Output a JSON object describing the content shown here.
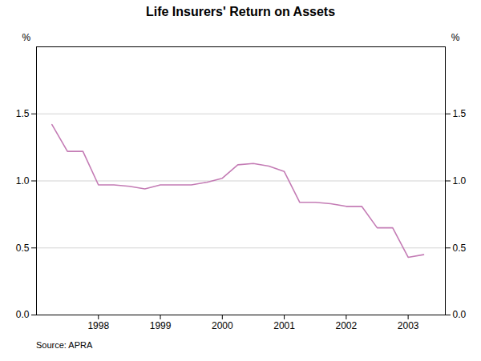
{
  "chart_data": {
    "type": "line",
    "title": "Life Insurers' Return on Assets",
    "source": "Source: APRA",
    "ylabel": "%",
    "y2label": "%",
    "color": "#c47cb5",
    "x": [
      1997.25,
      1997.5,
      1997.75,
      1998.0,
      1998.25,
      1998.5,
      1998.75,
      1999.0,
      1999.25,
      1999.5,
      1999.75,
      2000.0,
      2000.25,
      2000.5,
      2000.75,
      2001.0,
      2001.25,
      2001.5,
      2001.75,
      2002.0,
      2002.25,
      2002.5,
      2002.75,
      2003.0,
      2003.25
    ],
    "values": [
      1.42,
      1.22,
      1.22,
      0.97,
      0.97,
      0.96,
      0.94,
      0.97,
      0.97,
      0.97,
      0.99,
      1.02,
      1.12,
      1.13,
      1.11,
      1.07,
      0.84,
      0.84,
      0.83,
      0.81,
      0.81,
      0.65,
      0.65,
      0.43,
      0.45
    ],
    "xlim": [
      1997.0,
      2003.6
    ],
    "xticks": [
      1998,
      1999,
      2000,
      2001,
      2002,
      2003
    ],
    "ylim": [
      0.0,
      2.0
    ],
    "yticks": [
      {
        "value": 0,
        "label": "0.0"
      },
      0.5,
      {
        "value": 1,
        "label": "1.0"
      },
      1.5
    ],
    "y2lim": [
      0.0,
      2.0
    ],
    "y2ticks": [
      {
        "value": 0,
        "label": "0.0"
      },
      0.5,
      {
        "value": 1,
        "label": "1.0"
      },
      1.5
    ],
    "grid": true
  }
}
